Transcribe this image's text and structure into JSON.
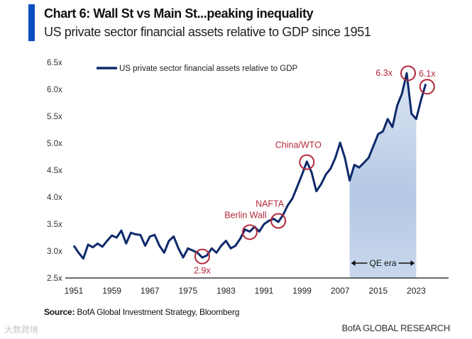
{
  "header": {
    "title": "Chart 6: Wall St vs Main St...peaking inequality",
    "subtitle": "US private sector financial assets relative to GDP since 1951"
  },
  "footer": {
    "source_label": "Source:",
    "source_text": " BofA Global Investment Strategy, Bloomberg",
    "brand": "BofA GLOBAL RESEARCH",
    "watermark": "大数跨境"
  },
  "colors": {
    "accent": "#0a4fbf",
    "line": "#0f2a6b",
    "annotation": "#b3283a",
    "shade": "#a9bfe0"
  },
  "chart_data": {
    "type": "line",
    "title": "Chart 6: Wall St vs Main St...peaking inequality",
    "xlabel": "",
    "ylabel": "",
    "xlim": [
      1951,
      2029
    ],
    "ylim": [
      2.5,
      6.5
    ],
    "grid": false,
    "legend": {
      "placement": "top-left",
      "entries": [
        "US private sector financial assets relative to GDP"
      ]
    },
    "x_ticks": [
      "1951",
      "1959",
      "1967",
      "1975",
      "1983",
      "1991",
      "1999",
      "2007",
      "2015",
      "2023"
    ],
    "y_ticks": [
      "2.5x",
      "3.0x",
      "3.5x",
      "4.0x",
      "4.5x",
      "5.0x",
      "5.5x",
      "6.0x",
      "6.5x"
    ],
    "series": [
      {
        "name": "US private sector financial assets relative to GDP",
        "x": [
          1951,
          1952,
          1953,
          1954,
          1955,
          1956,
          1957,
          1958,
          1959,
          1960,
          1961,
          1962,
          1963,
          1964,
          1965,
          1966,
          1967,
          1968,
          1969,
          1970,
          1971,
          1972,
          1973,
          1974,
          1975,
          1976,
          1977,
          1978,
          1979,
          1980,
          1981,
          1982,
          1983,
          1984,
          1985,
          1986,
          1987,
          1988,
          1989,
          1990,
          1991,
          1992,
          1993,
          1994,
          1995,
          1996,
          1997,
          1998,
          1999,
          2000,
          2001,
          2002,
          2003,
          2004,
          2005,
          2006,
          2007,
          2008,
          2009,
          2010,
          2011,
          2012,
          2013,
          2014,
          2015,
          2016,
          2017,
          2018,
          2019,
          2020,
          2021,
          2022,
          2023,
          2024,
          2025
        ],
        "values": [
          3.1,
          2.97,
          2.86,
          3.12,
          3.07,
          3.14,
          3.08,
          3.19,
          3.29,
          3.25,
          3.38,
          3.14,
          3.34,
          3.31,
          3.3,
          3.1,
          3.27,
          3.3,
          3.1,
          2.97,
          3.19,
          3.27,
          3.05,
          2.88,
          3.05,
          3.01,
          2.97,
          2.88,
          2.92,
          3.05,
          2.97,
          3.1,
          3.19,
          3.05,
          3.1,
          3.23,
          3.4,
          3.36,
          3.45,
          3.36,
          3.5,
          3.56,
          3.6,
          3.54,
          3.67,
          3.85,
          3.98,
          4.2,
          4.42,
          4.66,
          4.46,
          4.11,
          4.24,
          4.42,
          4.53,
          4.73,
          5.01,
          4.73,
          4.31,
          4.6,
          4.55,
          4.64,
          4.73,
          4.95,
          5.17,
          5.22,
          5.45,
          5.3,
          5.7,
          5.92,
          6.3,
          5.55,
          5.45,
          5.8,
          6.1
        ]
      }
    ],
    "shaded_region": {
      "label": "QE era",
      "x_range": [
        2009,
        2023
      ]
    },
    "annotations": [
      {
        "label": "2.9x",
        "x": 1978,
        "y": 2.9
      },
      {
        "label": "Berlin Wall",
        "x": 1988,
        "y": 3.35
      },
      {
        "label": "NAFTA",
        "x": 1994,
        "y": 3.56
      },
      {
        "label": "China/WTO",
        "x": 2000,
        "y": 4.65
      },
      {
        "label": "6.3x",
        "x": 2021.3,
        "y": 6.3
      },
      {
        "label": "6.1x",
        "x": 2025.3,
        "y": 6.05
      }
    ]
  }
}
